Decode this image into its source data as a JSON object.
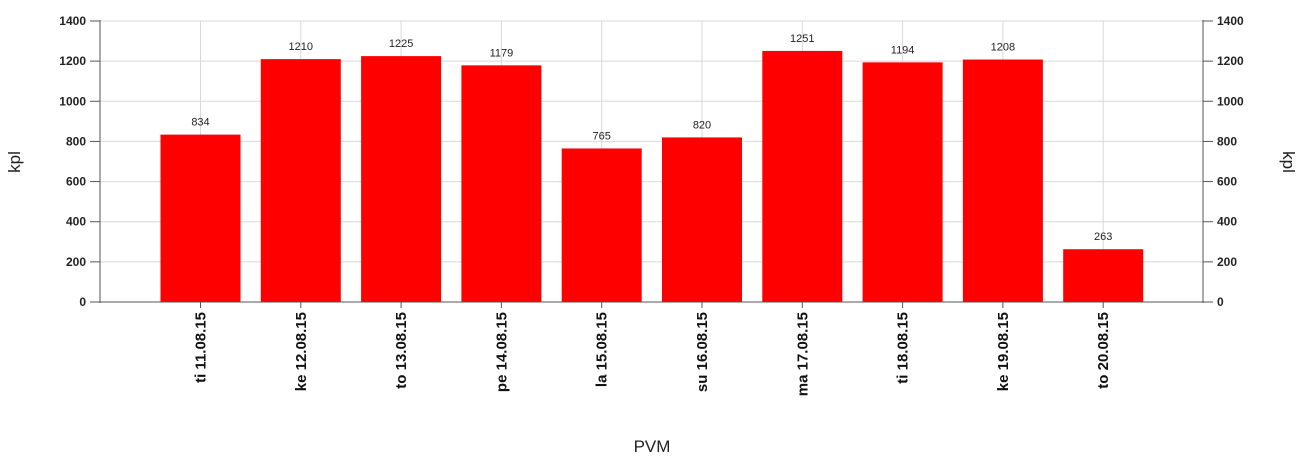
{
  "colors": {
    "bar": "#ff0000",
    "grid": "#d8d8d8",
    "axis": "#555555"
  },
  "chart_data": {
    "type": "bar",
    "categories": [
      "ti 11.08.15",
      "ke 12.08.15",
      "to 13.08.15",
      "pe 14.08.15",
      "la 15.08.15",
      "su 16.08.15",
      "ma 17.08.15",
      "ti 18.08.15",
      "ke 19.08.15",
      "to 20.08.15"
    ],
    "values": [
      834,
      1210,
      1225,
      1179,
      765,
      820,
      1251,
      1194,
      1208,
      263
    ],
    "title": "",
    "xlabel": "PVM",
    "ylabel": "kpl",
    "ylabel_right": "kpl",
    "ylim": [
      0,
      1400
    ],
    "yticks": [
      0,
      200,
      400,
      600,
      800,
      1000,
      1200,
      1400
    ],
    "grid": true,
    "data_labels": true
  }
}
